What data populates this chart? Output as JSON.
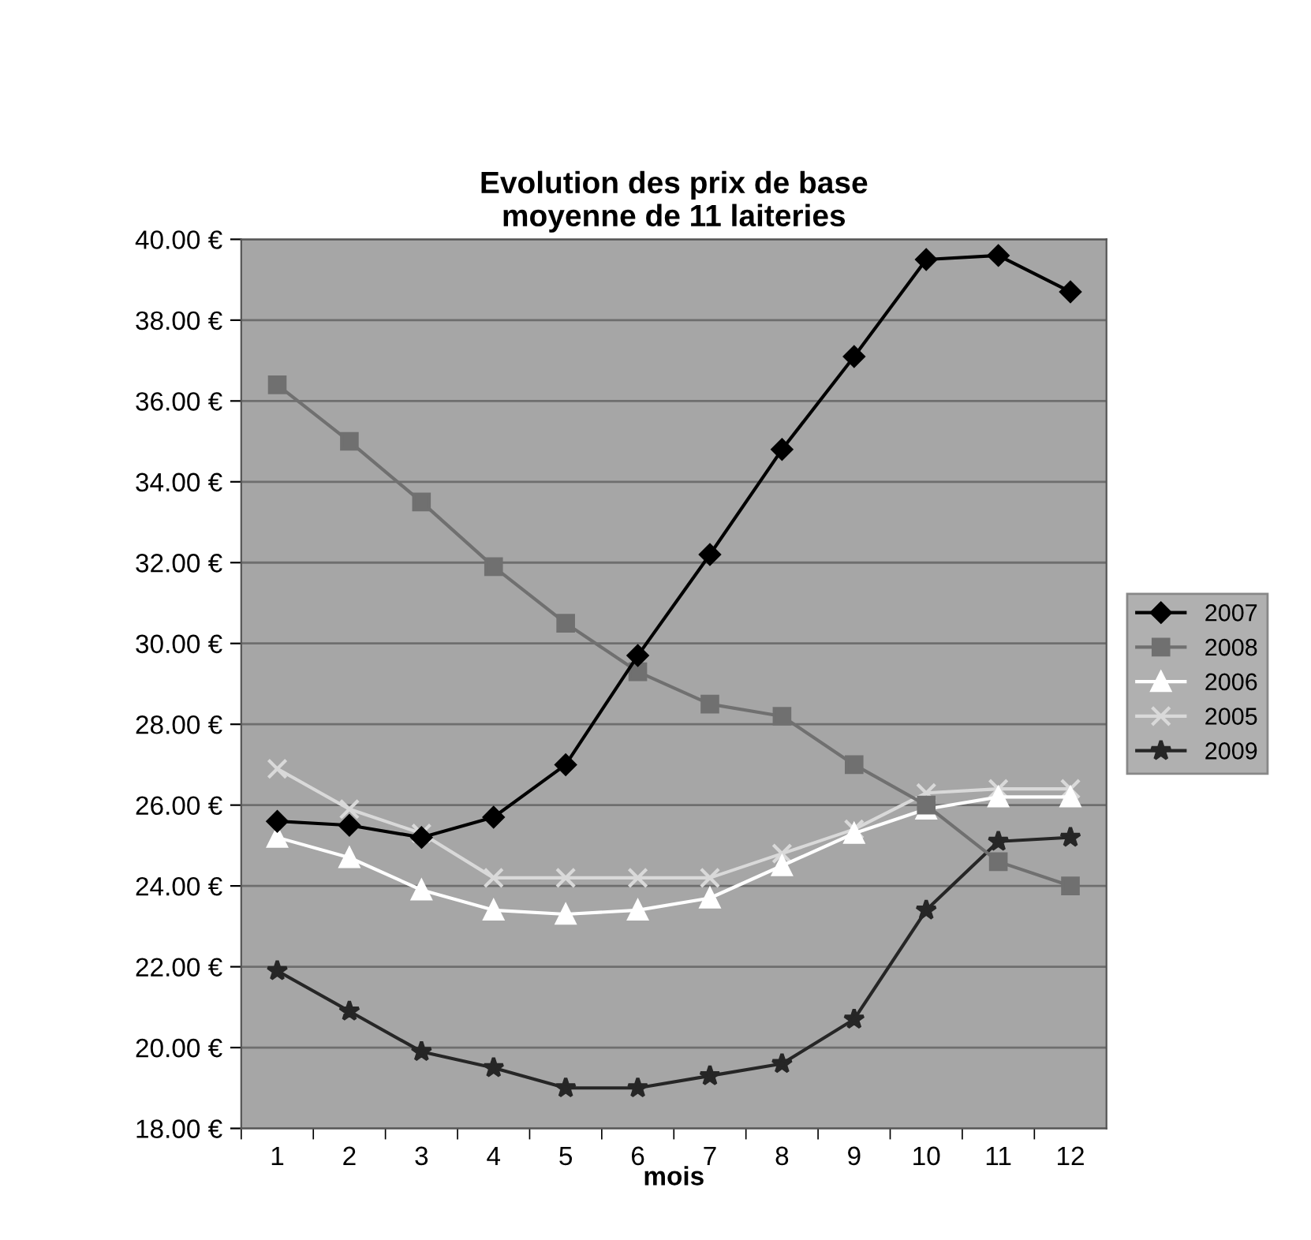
{
  "chart_data": {
    "type": "line",
    "title": "Evolution des prix de base\nmoyenne de 11 laiteries",
    "xlabel": "mois",
    "categories": [
      "1",
      "2",
      "3",
      "4",
      "5",
      "6",
      "7",
      "8",
      "9",
      "10",
      "11",
      "12"
    ],
    "series": [
      {
        "name": "2007",
        "color": "#000000",
        "marker": "diamond",
        "values": [
          25.6,
          25.5,
          25.2,
          25.7,
          27.0,
          29.7,
          32.2,
          34.8,
          37.1,
          39.5,
          39.6,
          38.7
        ]
      },
      {
        "name": "2008",
        "color": "#707070",
        "marker": "square",
        "values": [
          36.4,
          35.0,
          33.5,
          31.9,
          30.5,
          29.3,
          28.5,
          28.2,
          27.0,
          26.0,
          24.6,
          24.0
        ]
      },
      {
        "name": "2006",
        "color": "#ffffff",
        "marker": "triangle",
        "values": [
          25.2,
          24.7,
          23.9,
          23.4,
          23.3,
          23.4,
          23.7,
          24.5,
          25.3,
          25.9,
          26.2,
          26.2
        ]
      },
      {
        "name": "2005",
        "color": "#d9d9d9",
        "marker": "cross",
        "values": [
          26.9,
          25.9,
          25.3,
          24.2,
          24.2,
          24.2,
          24.2,
          24.8,
          25.4,
          26.3,
          26.4,
          26.4
        ]
      },
      {
        "name": "2009",
        "color": "#262626",
        "marker": "star",
        "values": [
          21.9,
          20.9,
          19.9,
          19.5,
          19.0,
          19.0,
          19.3,
          19.6,
          20.7,
          23.4,
          25.1,
          25.2
        ]
      }
    ],
    "ylim": [
      18,
      40
    ],
    "yticks": [
      {
        "value": 18,
        "label": "18.00 €"
      },
      {
        "value": 20,
        "label": "20.00 €"
      },
      {
        "value": 22,
        "label": "22.00 €"
      },
      {
        "value": 24,
        "label": "24.00 €"
      },
      {
        "value": 26,
        "label": "26.00 €"
      },
      {
        "value": 28,
        "label": "28.00 €"
      },
      {
        "value": 30,
        "label": "30.00 €"
      },
      {
        "value": 32,
        "label": "32.00 €"
      },
      {
        "value": 34,
        "label": "34.00 €"
      },
      {
        "value": 36,
        "label": "36.00 €"
      },
      {
        "value": 38,
        "label": "38.00 €"
      },
      {
        "value": 40,
        "label": "40.00 €"
      }
    ],
    "grid": "y",
    "legend": "right",
    "line_style": "solid"
  }
}
